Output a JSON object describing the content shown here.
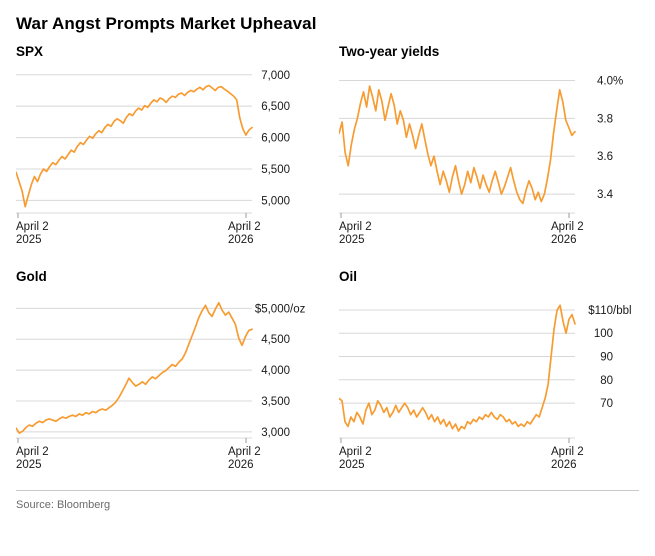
{
  "title": "War Angst Prompts Market Upheaval",
  "source": "Source: Bloomberg",
  "colors": {
    "line": "#F79C32",
    "grid": "#D8D8D8",
    "tick_mark": "#9B9B9B",
    "axis_text": "#1A1A1A",
    "divider": "#C9C9C9",
    "source_text": "#6B6B6B"
  },
  "chart_data": [
    {
      "type": "line",
      "name": "SPX",
      "ylim": [
        4800,
        7060
      ],
      "yticks": [
        {
          "value": 7000,
          "num": "7,000",
          "suffix": ""
        },
        {
          "value": 6500,
          "num": "6,500",
          "suffix": ""
        },
        {
          "value": 6000,
          "num": "6,000",
          "suffix": ""
        },
        {
          "value": 5500,
          "num": "5,500",
          "suffix": ""
        },
        {
          "value": 5000,
          "num": "5,000",
          "suffix": ""
        }
      ],
      "x_start": [
        "April 2",
        "2025"
      ],
      "x_end": [
        "April 2",
        "2026"
      ],
      "values": [
        5450,
        5300,
        5150,
        4900,
        5080,
        5250,
        5380,
        5300,
        5420,
        5500,
        5460,
        5540,
        5600,
        5570,
        5640,
        5700,
        5660,
        5730,
        5800,
        5770,
        5860,
        5920,
        5890,
        5960,
        6020,
        5990,
        6060,
        6110,
        6080,
        6160,
        6210,
        6180,
        6260,
        6300,
        6270,
        6230,
        6320,
        6380,
        6350,
        6420,
        6470,
        6440,
        6510,
        6480,
        6550,
        6600,
        6570,
        6630,
        6610,
        6560,
        6620,
        6660,
        6640,
        6690,
        6710,
        6670,
        6720,
        6750,
        6730,
        6770,
        6800,
        6760,
        6810,
        6830,
        6790,
        6750,
        6800,
        6810,
        6770,
        6740,
        6700,
        6660,
        6600,
        6320,
        6140,
        6040,
        6120,
        6160
      ]
    },
    {
      "type": "line",
      "name": "Two-year yields",
      "ylim": [
        3.3,
        4.05
      ],
      "yticks": [
        {
          "value": 4.0,
          "num": "4.0",
          "suffix": "%"
        },
        {
          "value": 3.8,
          "num": "3.8",
          "suffix": ""
        },
        {
          "value": 3.6,
          "num": "3.6",
          "suffix": ""
        },
        {
          "value": 3.4,
          "num": "3.4",
          "suffix": ""
        }
      ],
      "x_start": [
        "April 2",
        "2025"
      ],
      "x_end": [
        "April 2",
        "2026"
      ],
      "values": [
        3.72,
        3.78,
        3.62,
        3.55,
        3.66,
        3.74,
        3.8,
        3.88,
        3.94,
        3.86,
        3.97,
        3.91,
        3.84,
        3.95,
        3.89,
        3.79,
        3.86,
        3.93,
        3.87,
        3.77,
        3.84,
        3.79,
        3.7,
        3.77,
        3.71,
        3.64,
        3.71,
        3.77,
        3.69,
        3.61,
        3.55,
        3.6,
        3.52,
        3.45,
        3.52,
        3.47,
        3.41,
        3.49,
        3.55,
        3.47,
        3.4,
        3.45,
        3.52,
        3.46,
        3.54,
        3.49,
        3.43,
        3.5,
        3.45,
        3.41,
        3.47,
        3.52,
        3.46,
        3.4,
        3.44,
        3.49,
        3.54,
        3.47,
        3.41,
        3.37,
        3.35,
        3.42,
        3.47,
        3.43,
        3.37,
        3.41,
        3.36,
        3.4,
        3.48,
        3.58,
        3.72,
        3.84,
        3.95,
        3.89,
        3.79,
        3.75,
        3.71,
        3.73
      ]
    },
    {
      "type": "line",
      "name": "Gold",
      "ylim": [
        2900,
        5200
      ],
      "yticks": [
        {
          "value": 5000,
          "num": "$5,000",
          "suffix": "/oz"
        },
        {
          "value": 4500,
          "num": "4,500",
          "suffix": ""
        },
        {
          "value": 4000,
          "num": "4,000",
          "suffix": ""
        },
        {
          "value": 3500,
          "num": "3,500",
          "suffix": ""
        },
        {
          "value": 3000,
          "num": "3,000",
          "suffix": ""
        }
      ],
      "x_start": [
        "April 2",
        "2025"
      ],
      "x_end": [
        "April 2",
        "2026"
      ],
      "values": [
        3060,
        2980,
        3010,
        3070,
        3110,
        3090,
        3140,
        3170,
        3150,
        3190,
        3210,
        3190,
        3170,
        3210,
        3240,
        3220,
        3250,
        3270,
        3250,
        3290,
        3270,
        3310,
        3290,
        3330,
        3310,
        3350,
        3370,
        3350,
        3390,
        3430,
        3480,
        3560,
        3660,
        3760,
        3870,
        3800,
        3740,
        3770,
        3810,
        3770,
        3840,
        3890,
        3860,
        3910,
        3960,
        3990,
        4040,
        4090,
        4060,
        4130,
        4180,
        4280,
        4420,
        4560,
        4700,
        4850,
        4960,
        5050,
        4930,
        4870,
        4990,
        5090,
        4970,
        4890,
        4940,
        4840,
        4740,
        4520,
        4400,
        4540,
        4640,
        4660
      ]
    },
    {
      "type": "line",
      "name": "Oil",
      "ylim": [
        55,
        116
      ],
      "yticks": [
        {
          "value": 110,
          "num": "$110",
          "suffix": "/bbl"
        },
        {
          "value": 100,
          "num": "100",
          "suffix": ""
        },
        {
          "value": 90,
          "num": "90",
          "suffix": ""
        },
        {
          "value": 80,
          "num": "80",
          "suffix": ""
        },
        {
          "value": 70,
          "num": "70",
          "suffix": ""
        }
      ],
      "x_start": [
        "April 2",
        "2025"
      ],
      "x_end": [
        "April 2",
        "2026"
      ],
      "values": [
        72,
        71,
        62,
        60,
        64,
        62,
        66,
        64,
        61,
        67,
        70,
        65,
        67,
        71,
        69,
        66,
        68,
        64,
        66,
        69,
        66,
        68,
        70,
        68,
        65,
        67,
        64,
        66,
        68,
        66,
        63,
        65,
        62,
        64,
        61,
        63,
        60,
        62,
        59,
        61,
        58,
        60,
        59,
        62,
        61,
        63,
        62,
        64,
        63,
        65,
        64,
        66,
        64,
        63,
        65,
        64,
        62,
        63,
        61,
        62,
        60,
        61,
        60,
        62,
        61,
        63,
        65,
        64,
        68,
        72,
        78,
        90,
        102,
        110,
        112,
        105,
        100,
        106,
        108,
        104
      ]
    }
  ]
}
